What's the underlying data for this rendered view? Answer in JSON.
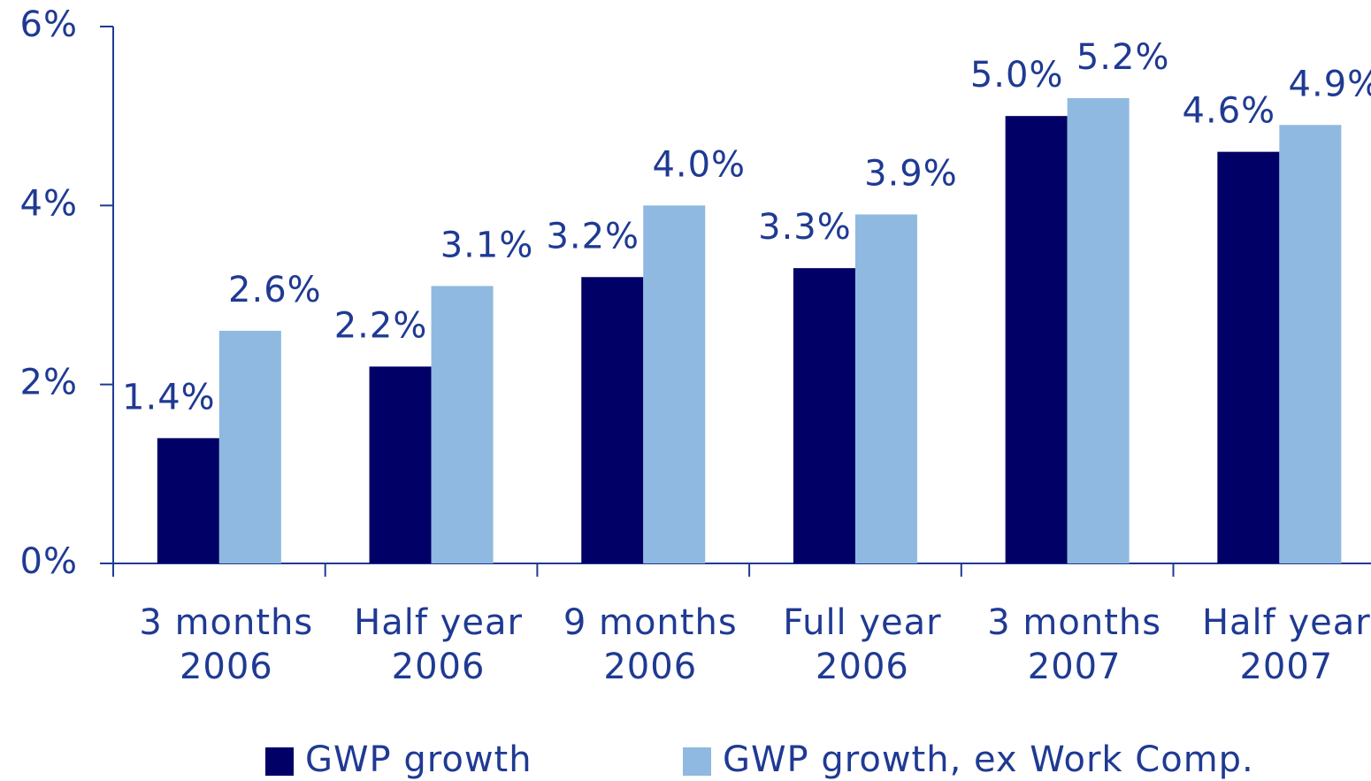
{
  "chart_data": {
    "type": "bar",
    "categories": [
      "3 months\n2006",
      "Half year\n2006",
      "9 months\n2006",
      "Full year\n2006",
      "3 months\n2007",
      "Half year\n2007"
    ],
    "series": [
      {
        "name": "GWP growth",
        "color": "#000066",
        "values": [
          1.4,
          2.2,
          3.2,
          3.3,
          5.0,
          4.6
        ],
        "value_labels": [
          "1.4%",
          "2.2%",
          "3.2%",
          "3.3%",
          "5.0%",
          "4.6%"
        ]
      },
      {
        "name": "GWP growth, ex Work Comp.",
        "color": "#8fb9e0",
        "values": [
          2.6,
          3.1,
          4.0,
          3.9,
          5.2,
          4.9
        ],
        "value_labels": [
          "2.6%",
          "3.1%",
          "4.0%",
          "3.9%",
          "5.2%",
          "4.9%"
        ]
      }
    ],
    "ylim": [
      0,
      6
    ],
    "yticks": [
      {
        "value": 0,
        "label": "0%"
      },
      {
        "value": 2,
        "label": "2%"
      },
      {
        "value": 4,
        "label": "4%"
      },
      {
        "value": 6,
        "label": "6%"
      }
    ],
    "legend": "bottom"
  }
}
